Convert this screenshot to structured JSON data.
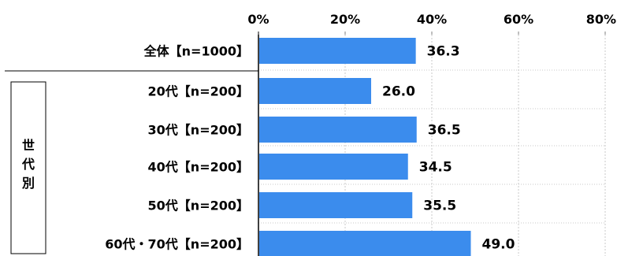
{
  "chart_data": {
    "type": "bar",
    "orientation": "horizontal",
    "title": "",
    "xlabel": "",
    "ylabel": "",
    "xlim": [
      0,
      80
    ],
    "ticks": [
      0,
      20,
      40,
      60,
      80
    ],
    "tick_labels": [
      "0%",
      "20%",
      "40%",
      "60%",
      "80%"
    ],
    "grid": true,
    "bar_color": "#3b8ced",
    "categories": [
      "全体【n=1000】",
      "20代【n=200】",
      "30代【n=200】",
      "40代【n=200】",
      "50代【n=200】",
      "60代・70代【n=200】"
    ],
    "values": [
      36.3,
      26.0,
      36.5,
      34.5,
      35.5,
      49.0
    ],
    "value_labels": [
      "36.3",
      "26.0",
      "36.5",
      "34.5",
      "35.5",
      "49.0"
    ],
    "group_label": [
      "世",
      "代",
      "別"
    ]
  }
}
